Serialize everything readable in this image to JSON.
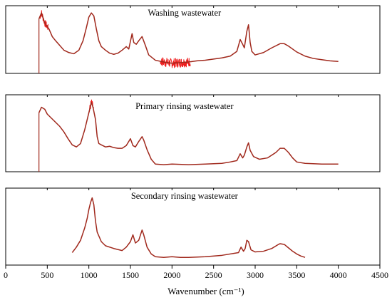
{
  "chart_data": {
    "type": "line",
    "xlabel": "Wavenumber (cm⁻¹)",
    "xlim": [
      0,
      4500
    ],
    "x_ticks": [
      "0",
      "500",
      "1000",
      "1500",
      "2000",
      "2500",
      "3000",
      "3500",
      "4000",
      "4500"
    ],
    "x_tick_values": [
      0,
      500,
      1000,
      1500,
      2000,
      2500,
      3000,
      3500,
      4000,
      4500
    ],
    "colors": {
      "line": "#a0281c",
      "noise": "#ee1c1c",
      "axis": "#000000"
    },
    "grid": false,
    "panels": [
      {
        "title": "Washing wastewater",
        "x": [
          400,
          430,
          470,
          520,
          560,
          600,
          650,
          700,
          760,
          820,
          880,
          930,
          970,
          1000,
          1030,
          1060,
          1090,
          1120,
          1150,
          1200,
          1250,
          1300,
          1350,
          1400,
          1450,
          1480,
          1520,
          1540,
          1570,
          1600,
          1640,
          1680,
          1720,
          1800,
          1900,
          2000,
          2100,
          2200,
          2300,
          2400,
          2500,
          2600,
          2700,
          2780,
          2820,
          2850,
          2870,
          2900,
          2920,
          2940,
          2960,
          3000,
          3100,
          3200,
          3300,
          3350,
          3400,
          3500,
          3600,
          3700,
          3800,
          3900,
          4000
        ],
        "y": [
          0.85,
          0.95,
          0.78,
          0.68,
          0.55,
          0.48,
          0.4,
          0.32,
          0.28,
          0.26,
          0.32,
          0.48,
          0.7,
          0.88,
          0.95,
          0.9,
          0.68,
          0.48,
          0.38,
          0.32,
          0.27,
          0.25,
          0.27,
          0.32,
          0.38,
          0.34,
          0.6,
          0.45,
          0.42,
          0.48,
          0.55,
          0.4,
          0.24,
          0.15,
          0.12,
          0.1,
          0.11,
          0.12,
          0.14,
          0.15,
          0.17,
          0.19,
          0.22,
          0.3,
          0.5,
          0.42,
          0.36,
          0.64,
          0.75,
          0.45,
          0.3,
          0.24,
          0.28,
          0.36,
          0.43,
          0.43,
          0.39,
          0.29,
          0.22,
          0.18,
          0.16,
          0.14,
          0.13
        ],
        "noisy_ranges": [
          [
            410,
            510
          ],
          [
            1860,
            2220
          ]
        ],
        "vline": 400
      },
      {
        "title": "Primary rinsing wastewater",
        "x": [
          400,
          430,
          470,
          500,
          550,
          600,
          650,
          700,
          750,
          800,
          850,
          900,
          950,
          1000,
          1030,
          1050,
          1080,
          1100,
          1120,
          1150,
          1200,
          1250,
          1300,
          1350,
          1400,
          1450,
          1480,
          1500,
          1530,
          1560,
          1600,
          1640,
          1660,
          1700,
          1750,
          1800,
          1900,
          2000,
          2200,
          2400,
          2600,
          2700,
          2780,
          2820,
          2850,
          2870,
          2900,
          2920,
          2940,
          2980,
          3050,
          3150,
          3250,
          3300,
          3350,
          3400,
          3450,
          3500,
          3600,
          3800,
          4000
        ],
        "y": [
          0.8,
          0.88,
          0.85,
          0.78,
          0.72,
          0.66,
          0.6,
          0.52,
          0.42,
          0.33,
          0.3,
          0.35,
          0.55,
          0.8,
          0.95,
          0.88,
          0.7,
          0.45,
          0.35,
          0.33,
          0.3,
          0.31,
          0.29,
          0.28,
          0.28,
          0.32,
          0.38,
          0.42,
          0.32,
          0.3,
          0.38,
          0.45,
          0.4,
          0.26,
          0.12,
          0.05,
          0.04,
          0.05,
          0.04,
          0.05,
          0.06,
          0.08,
          0.1,
          0.2,
          0.14,
          0.18,
          0.3,
          0.36,
          0.25,
          0.16,
          0.12,
          0.14,
          0.22,
          0.28,
          0.28,
          0.22,
          0.14,
          0.08,
          0.06,
          0.05,
          0.05
        ],
        "noisy_ranges": [
          [
            1000,
            1060
          ]
        ],
        "vline": 400
      },
      {
        "title": "Secondary rinsing wastewater",
        "x": [
          800,
          850,
          900,
          950,
          980,
          1000,
          1020,
          1040,
          1060,
          1080,
          1100,
          1150,
          1200,
          1300,
          1400,
          1450,
          1500,
          1530,
          1560,
          1600,
          1640,
          1660,
          1700,
          1750,
          1800,
          1900,
          2000,
          2100,
          2200,
          2400,
          2600,
          2800,
          2830,
          2860,
          2880,
          2900,
          2920,
          2950,
          3000,
          3100,
          3200,
          3280,
          3300,
          3350,
          3400,
          3450,
          3500,
          3550,
          3600
        ],
        "y": [
          0.12,
          0.2,
          0.3,
          0.48,
          0.62,
          0.75,
          0.85,
          0.92,
          0.82,
          0.58,
          0.42,
          0.28,
          0.22,
          0.18,
          0.15,
          0.2,
          0.28,
          0.38,
          0.26,
          0.3,
          0.45,
          0.38,
          0.2,
          0.1,
          0.06,
          0.05,
          0.06,
          0.05,
          0.05,
          0.06,
          0.08,
          0.12,
          0.2,
          0.14,
          0.18,
          0.3,
          0.28,
          0.16,
          0.13,
          0.14,
          0.18,
          0.24,
          0.25,
          0.24,
          0.19,
          0.14,
          0.1,
          0.07,
          0.05
        ],
        "noisy_ranges": [],
        "vline": null
      }
    ]
  }
}
